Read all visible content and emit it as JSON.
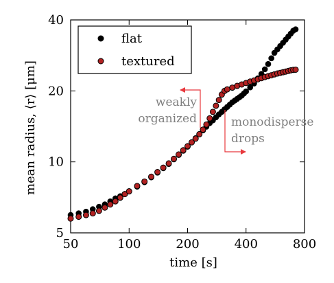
{
  "chart_data": {
    "type": "scatter",
    "title": "",
    "xlabel": "time [s]",
    "ylabel": "mean radius, ⟨r⟩ [μm]",
    "xscale": "log",
    "yscale": "log",
    "xlim": [
      50,
      800
    ],
    "ylim": [
      5,
      40
    ],
    "x_tick_labels": [
      "50",
      "100",
      "200",
      "400",
      "800"
    ],
    "x_tick_values": [
      50,
      100,
      200,
      400,
      800
    ],
    "y_tick_labels": [
      "5",
      "10",
      "20",
      "40"
    ],
    "y_tick_values": [
      5,
      10,
      20,
      40
    ],
    "grid": false,
    "legend": {
      "placement": "top-left",
      "entries": [
        "flat",
        "textured"
      ]
    },
    "series": [
      {
        "name": "flat",
        "color": "#000000",
        "x": [
          50,
          55,
          60,
          65,
          70,
          75,
          80,
          85,
          90,
          95,
          100,
          110,
          120,
          130,
          140,
          150,
          160,
          170,
          180,
          190,
          200,
          210,
          220,
          230,
          240,
          250,
          260,
          270,
          280,
          290,
          300,
          310,
          320,
          330,
          340,
          350,
          360,
          370,
          380,
          390,
          400,
          420,
          440,
          460,
          480,
          500,
          520,
          540,
          560,
          580,
          600,
          620,
          640,
          660,
          680,
          700,
          720
        ],
        "y": [
          5.95,
          6.05,
          6.15,
          6.3,
          6.45,
          6.6,
          6.8,
          7.0,
          7.15,
          7.3,
          7.5,
          7.85,
          8.2,
          8.6,
          9.0,
          9.4,
          9.8,
          10.25,
          10.7,
          11.15,
          11.6,
          12.1,
          12.6,
          13.1,
          13.6,
          14.1,
          14.6,
          15.0,
          15.45,
          15.9,
          16.3,
          16.7,
          17.1,
          17.5,
          17.9,
          18.2,
          18.5,
          18.8,
          19.1,
          19.5,
          19.9,
          20.7,
          21.5,
          22.6,
          23.6,
          24.7,
          26.0,
          27.5,
          29.0,
          30.0,
          31.0,
          32.0,
          33.0,
          34.0,
          35.0,
          36.0,
          36.5
        ]
      },
      {
        "name": "textured",
        "color": "#b22222",
        "x": [
          50,
          55,
          60,
          65,
          70,
          75,
          80,
          85,
          90,
          95,
          100,
          110,
          120,
          130,
          140,
          150,
          160,
          170,
          180,
          190,
          200,
          210,
          220,
          230,
          240,
          250,
          260,
          270,
          280,
          290,
          300,
          310,
          320,
          340,
          360,
          380,
          400,
          420,
          440,
          460,
          480,
          500,
          520,
          540,
          560,
          580,
          600,
          620,
          640,
          660,
          680,
          700,
          720
        ],
        "y": [
          5.75,
          5.85,
          5.95,
          6.05,
          6.2,
          6.4,
          6.6,
          6.8,
          7.05,
          7.3,
          7.5,
          7.9,
          8.25,
          8.65,
          9.05,
          9.45,
          9.85,
          10.3,
          10.75,
          11.2,
          11.65,
          12.1,
          12.55,
          13.1,
          13.7,
          14.4,
          15.3,
          16.3,
          17.3,
          18.3,
          19.3,
          20.0,
          20.3,
          20.65,
          21.0,
          21.3,
          21.6,
          21.9,
          22.15,
          22.4,
          22.65,
          22.9,
          23.1,
          23.3,
          23.5,
          23.7,
          23.85,
          24.0,
          24.15,
          24.3,
          24.45,
          24.55,
          24.6
        ]
      }
    ],
    "annotations": [
      {
        "text_lines": [
          "weakly",
          "organized"
        ],
        "color": "#7f7f7f",
        "arrow_color": "#e8383d"
      },
      {
        "text_lines": [
          "monodisperse",
          "drops"
        ],
        "color": "#7f7f7f",
        "arrow_color": "#e8383d"
      }
    ]
  }
}
